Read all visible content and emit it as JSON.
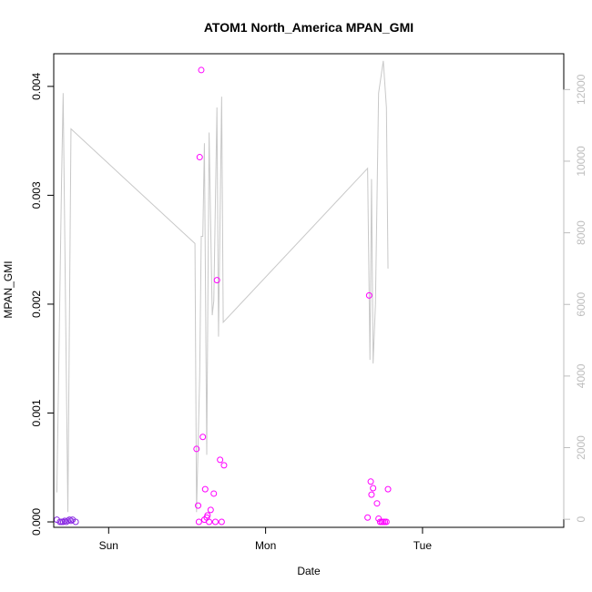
{
  "chart_data": {
    "type": "scatter",
    "title": "ATOM1 North_America MPAN_GMI",
    "xlabel": "Date",
    "ylabel": "MPAN_GMI",
    "x_axis": {
      "min": -0.35,
      "max": 2.9,
      "ticks": [
        {
          "value": 0,
          "label": "Sun"
        },
        {
          "value": 1,
          "label": "Mon"
        },
        {
          "value": 2,
          "label": "Tue"
        }
      ]
    },
    "y_axis_left": {
      "min": -5e-05,
      "max": 0.0043,
      "ticks": [
        {
          "value": 0,
          "label": "0.000"
        },
        {
          "value": 0.001,
          "label": "0.001"
        },
        {
          "value": 0.002,
          "label": "0.002"
        },
        {
          "value": 0.003,
          "label": "0.003"
        },
        {
          "value": 0.004,
          "label": "0.004"
        }
      ]
    },
    "y_axis_right": {
      "min": -225,
      "max": 13000,
      "ticks": [
        {
          "value": 0,
          "label": "0"
        },
        {
          "value": 2000,
          "label": "2000"
        },
        {
          "value": 4000,
          "label": "4000"
        },
        {
          "value": 6000,
          "label": "6000"
        },
        {
          "value": 8000,
          "label": "8000"
        },
        {
          "value": 10000,
          "label": "10000"
        },
        {
          "value": 12000,
          "label": "12000"
        }
      ]
    },
    "colors": {
      "points_low": "#8a2be2",
      "points_high": "#ff00ff",
      "line": "#c8c8c8",
      "right_axis": "#bdbdbd",
      "frame": "#000000"
    },
    "series": [
      {
        "axis": "left",
        "style": "points",
        "color": "#8a2be2",
        "points": [
          {
            "x": -0.33,
            "y": 2e-05
          },
          {
            "x": -0.31,
            "y": 0.0
          },
          {
            "x": -0.3,
            "y": 0.0
          },
          {
            "x": -0.29,
            "y": 0.0
          },
          {
            "x": -0.28,
            "y": 1e-05
          },
          {
            "x": -0.27,
            "y": 0.0
          },
          {
            "x": -0.26,
            "y": 1e-05
          },
          {
            "x": -0.25,
            "y": 2e-05
          },
          {
            "x": -0.24,
            "y": 1e-05
          },
          {
            "x": -0.23,
            "y": 2e-05
          },
          {
            "x": -0.21,
            "y": 0.0
          }
        ]
      },
      {
        "axis": "left",
        "style": "points",
        "color": "#ff00ff",
        "points": [
          {
            "x": 0.56,
            "y": 0.00067
          },
          {
            "x": 0.57,
            "y": 0.00015
          },
          {
            "x": 0.575,
            "y": 0.0
          },
          {
            "x": 0.58,
            "y": 0.00335
          },
          {
            "x": 0.59,
            "y": 0.00415
          },
          {
            "x": 0.6,
            "y": 0.00078
          },
          {
            "x": 0.61,
            "y": 2e-05
          },
          {
            "x": 0.615,
            "y": 0.0003
          },
          {
            "x": 0.625,
            "y": 4e-05
          },
          {
            "x": 0.63,
            "y": 6e-05
          },
          {
            "x": 0.64,
            "y": 0.0
          },
          {
            "x": 0.65,
            "y": 0.00011
          },
          {
            "x": 0.67,
            "y": 0.00026
          },
          {
            "x": 0.68,
            "y": 0.0
          },
          {
            "x": 0.69,
            "y": 0.00222
          },
          {
            "x": 0.71,
            "y": 0.00057
          },
          {
            "x": 0.72,
            "y": 0.0
          },
          {
            "x": 0.735,
            "y": 0.00052
          },
          {
            "x": 1.65,
            "y": 4e-05
          },
          {
            "x": 1.66,
            "y": 0.00208
          },
          {
            "x": 1.67,
            "y": 0.00037
          },
          {
            "x": 1.675,
            "y": 0.00025
          },
          {
            "x": 1.685,
            "y": 0.00031
          },
          {
            "x": 1.71,
            "y": 0.00017
          },
          {
            "x": 1.72,
            "y": 3e-05
          },
          {
            "x": 1.73,
            "y": 0.0
          },
          {
            "x": 1.74,
            "y": 0.0
          },
          {
            "x": 1.75,
            "y": 0.0
          },
          {
            "x": 1.76,
            "y": 0.0
          },
          {
            "x": 1.77,
            "y": 0.0
          },
          {
            "x": 1.78,
            "y": 0.0003
          }
        ]
      },
      {
        "axis": "right",
        "style": "line",
        "color": "#c8c8c8",
        "points": [
          {
            "x": -0.33,
            "y": 750
          },
          {
            "x": -0.3,
            "y": 9500
          },
          {
            "x": -0.29,
            "y": 11900
          },
          {
            "x": -0.26,
            "y": 200
          },
          {
            "x": -0.24,
            "y": 10900
          },
          {
            "x": 0.55,
            "y": 7700
          },
          {
            "x": 0.56,
            "y": 200
          },
          {
            "x": 0.58,
            "y": 4000
          },
          {
            "x": 0.59,
            "y": 7900
          },
          {
            "x": 0.6,
            "y": 7900
          },
          {
            "x": 0.61,
            "y": 10500
          },
          {
            "x": 0.625,
            "y": 1800
          },
          {
            "x": 0.64,
            "y": 10800
          },
          {
            "x": 0.66,
            "y": 5700
          },
          {
            "x": 0.67,
            "y": 6100
          },
          {
            "x": 0.69,
            "y": 11500
          },
          {
            "x": 0.7,
            "y": 5100
          },
          {
            "x": 0.72,
            "y": 11800
          },
          {
            "x": 0.73,
            "y": 5500
          },
          {
            "x": 1.65,
            "y": 9800
          },
          {
            "x": 1.665,
            "y": 4450
          },
          {
            "x": 1.675,
            "y": 9500
          },
          {
            "x": 1.685,
            "y": 4350
          },
          {
            "x": 1.7,
            "y": 6000
          },
          {
            "x": 1.72,
            "y": 11900
          },
          {
            "x": 1.74,
            "y": 12500
          },
          {
            "x": 1.75,
            "y": 12800
          },
          {
            "x": 1.77,
            "y": 11500
          },
          {
            "x": 1.78,
            "y": 7000
          }
        ]
      }
    ]
  }
}
